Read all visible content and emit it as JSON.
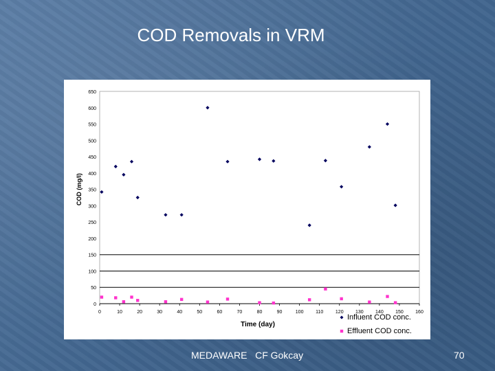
{
  "slide": {
    "title": "COD Removals in VRM",
    "footer": "MEDAWARE   CF Gokcay",
    "page_number": "70"
  },
  "colors": {
    "influent": "#00005e",
    "effluent": "#ff33cc",
    "plot_bg": "#ffffff",
    "gridline": "#000000"
  },
  "chart_data": {
    "type": "scatter",
    "title": "",
    "xlabel": "Time (day)",
    "ylabel": "COD (mg/l)",
    "xlim": [
      0,
      160
    ],
    "ylim": [
      0,
      650
    ],
    "x_ticks": [
      "0",
      "10",
      "20",
      "30",
      "40",
      "50",
      "60",
      "70",
      "80",
      "90",
      "100",
      "110",
      "120",
      "130",
      "140",
      "150",
      "160"
    ],
    "y_ticks": [
      "0",
      "50",
      "100",
      "150",
      "200",
      "250",
      "300",
      "350",
      "400",
      "450",
      "500",
      "550",
      "600",
      "650"
    ],
    "gridlines_y": [
      50,
      100,
      150
    ],
    "legend_position": "bottom-right",
    "series": [
      {
        "name": "Influent COD conc.",
        "marker": "diamond",
        "x": [
          1,
          8,
          12,
          16,
          19,
          33,
          41,
          54,
          64,
          80,
          87,
          105,
          113,
          121,
          135,
          144,
          148
        ],
        "y": [
          342,
          420,
          395,
          435,
          325,
          272,
          272,
          600,
          435,
          442,
          437,
          240,
          438,
          358,
          480,
          550,
          301
        ]
      },
      {
        "name": "Effluent COD conc.",
        "marker": "square",
        "x": [
          1,
          8,
          12,
          16,
          19,
          33,
          41,
          54,
          64,
          80,
          87,
          105,
          113,
          121,
          135,
          144,
          148
        ],
        "y": [
          20,
          18,
          6,
          20,
          10,
          6,
          13,
          5,
          14,
          3,
          2,
          12,
          45,
          15,
          5,
          22,
          3
        ]
      }
    ]
  }
}
